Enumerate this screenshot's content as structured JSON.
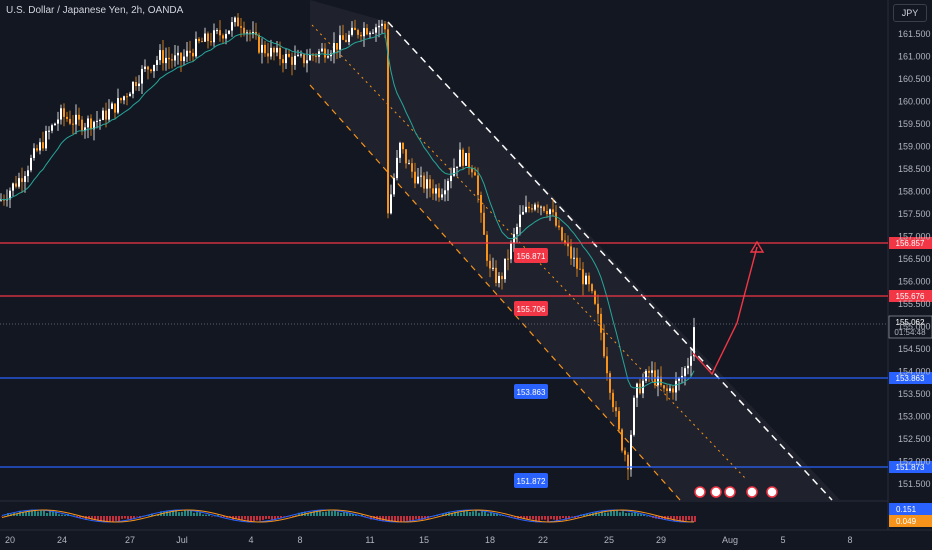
{
  "header": {
    "title": "U.S. Dollar / Japanese Yen, 2h, OANDA",
    "currency": "JPY"
  },
  "colors": {
    "background": "#131722",
    "up": "#ffffff",
    "down": "#f7931a",
    "ema": "#26a69a",
    "resistance": "#f23645",
    "support": "#2962ff",
    "projection": "#f23645",
    "channel": "#ffffff",
    "channel_lower": "#f7931a"
  },
  "chart_data": {
    "type": "candlestick",
    "symbol": "USDJPY",
    "interval": "2h",
    "y_range": [
      151.3,
      162.3
    ],
    "y_ticks": [
      "161.500",
      "161.000",
      "160.500",
      "160.000",
      "159.500",
      "159.000",
      "158.500",
      "158.000",
      "157.500",
      "157.000",
      "156.500",
      "156.000",
      "155.500",
      "155.000",
      "154.500",
      "154.000",
      "153.500",
      "153.000",
      "152.500",
      "152.000",
      "151.500"
    ],
    "x_ticks": [
      "20",
      "24",
      "27",
      "Jul",
      "4",
      "8",
      "11",
      "15",
      "18",
      "22",
      "25",
      "29",
      "Aug",
      "5",
      "8"
    ],
    "price_path": [
      [
        0,
        157.8
      ],
      [
        20,
        158.3
      ],
      [
        40,
        159.0
      ],
      [
        60,
        159.7
      ],
      [
        80,
        159.5
      ],
      [
        100,
        159.6
      ],
      [
        120,
        160.0
      ],
      [
        140,
        160.6
      ],
      [
        160,
        161.0
      ],
      [
        180,
        160.9
      ],
      [
        200,
        161.3
      ],
      [
        220,
        161.5
      ],
      [
        240,
        161.8
      ],
      [
        260,
        161.2
      ],
      [
        280,
        161.0
      ],
      [
        300,
        160.9
      ],
      [
        320,
        161.1
      ],
      [
        340,
        161.3
      ],
      [
        360,
        161.6
      ],
      [
        380,
        161.7
      ],
      [
        386,
        161.6
      ],
      [
        388,
        157.6
      ],
      [
        400,
        159.0
      ],
      [
        410,
        158.5
      ],
      [
        420,
        158.2
      ],
      [
        440,
        158.0
      ],
      [
        460,
        158.8
      ],
      [
        475,
        158.5
      ],
      [
        480,
        157.5
      ],
      [
        490,
        156.2
      ],
      [
        500,
        156.0
      ],
      [
        510,
        156.7
      ],
      [
        520,
        157.4
      ],
      [
        535,
        157.8
      ],
      [
        550,
        157.6
      ],
      [
        560,
        157.0
      ],
      [
        575,
        156.4
      ],
      [
        590,
        155.8
      ],
      [
        600,
        155.0
      ],
      [
        610,
        153.7
      ],
      [
        620,
        152.5
      ],
      [
        628,
        152.0
      ],
      [
        635,
        153.5
      ],
      [
        650,
        154.0
      ],
      [
        665,
        153.5
      ],
      [
        680,
        153.8
      ],
      [
        690,
        154.3
      ],
      [
        695,
        155.2
      ]
    ],
    "current_price": "155.062",
    "countdown": "01:54:48",
    "levels": [
      {
        "label": "156.871",
        "axis_label": "156.857",
        "kind": "resistance"
      },
      {
        "label": "155.706",
        "axis_label": "155.676",
        "kind": "resistance"
      },
      {
        "label": "153.863",
        "axis_label": "153.863",
        "kind": "support"
      },
      {
        "label": "151.872",
        "axis_label": "151.873",
        "kind": "support"
      }
    ],
    "projection": [
      [
        693,
        154.8
      ],
      [
        712,
        153.9
      ],
      [
        737,
        155.5
      ],
      [
        757,
        156.9
      ]
    ],
    "indicator": {
      "value_1": "0.151",
      "value_2": "0.049"
    }
  }
}
